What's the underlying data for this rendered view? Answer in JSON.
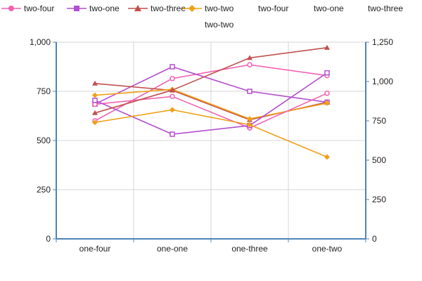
{
  "chart_data": {
    "type": "line",
    "categories": [
      "one-four",
      "one-one",
      "one-three",
      "one-two"
    ],
    "left_axis": {
      "ticks": [
        "0",
        "250",
        "500",
        "750",
        "1,000"
      ],
      "ylim": [
        0,
        1000
      ]
    },
    "right_axis": {
      "ticks": [
        "0",
        "250",
        "500",
        "750",
        "1,000",
        "1,250"
      ],
      "ylim": [
        0,
        1250
      ]
    },
    "grid": true,
    "legend_position": "top",
    "series": [
      {
        "name": "two-four",
        "axis": "left",
        "color": "#f062b4",
        "marker": "circle",
        "values": [
          600,
          815,
          885,
          830
        ]
      },
      {
        "name": "two-one",
        "axis": "left",
        "color": "#b44fcf",
        "marker": "square",
        "values": [
          685,
          875,
          750,
          695
        ]
      },
      {
        "name": "two-three",
        "axis": "left",
        "color": "#c0504d",
        "marker": "triangle",
        "values": [
          790,
          755,
          605,
          695
        ]
      },
      {
        "name": "two-two",
        "axis": "left",
        "color": "#f0a016",
        "marker": "diamond",
        "values": [
          730,
          760,
          610,
          690
        ]
      },
      {
        "name": "two-four",
        "axis": "right",
        "color": "#f062b4",
        "marker": "circle",
        "values": [
          855,
          905,
          705,
          925
        ]
      },
      {
        "name": "two-one",
        "axis": "right",
        "color": "#b44fcf",
        "marker": "square",
        "values": [
          880,
          665,
          720,
          1055
        ]
      },
      {
        "name": "two-three",
        "axis": "right",
        "color": "#c0504d",
        "marker": "triangle",
        "values": [
          800,
          945,
          1150,
          1215
        ]
      },
      {
        "name": "two-two",
        "axis": "right",
        "color": "#f0a016",
        "marker": "diamond",
        "values": [
          740,
          820,
          725,
          520
        ]
      }
    ]
  },
  "colors": {
    "grid": "#d4d4d4",
    "axis": "#4e84b8"
  }
}
